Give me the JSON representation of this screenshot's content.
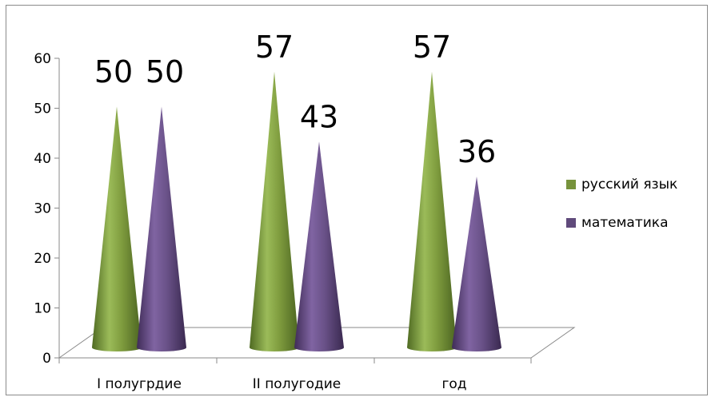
{
  "chart_data": {
    "type": "bar",
    "style": "3d-cone",
    "categories": [
      "I полугрдие",
      "II полугодие",
      "год"
    ],
    "series": [
      {
        "name": "русский язык",
        "values": [
          50,
          57,
          57
        ],
        "color": "#77933c"
      },
      {
        "name": "математика",
        "values": [
          50,
          43,
          36
        ],
        "color": "#604a7b"
      }
    ],
    "ylim": [
      0,
      60
    ],
    "yticks": [
      0,
      10,
      20,
      30,
      40,
      50,
      60
    ],
    "data_labels": true,
    "legend_position": "right",
    "grid": false
  }
}
